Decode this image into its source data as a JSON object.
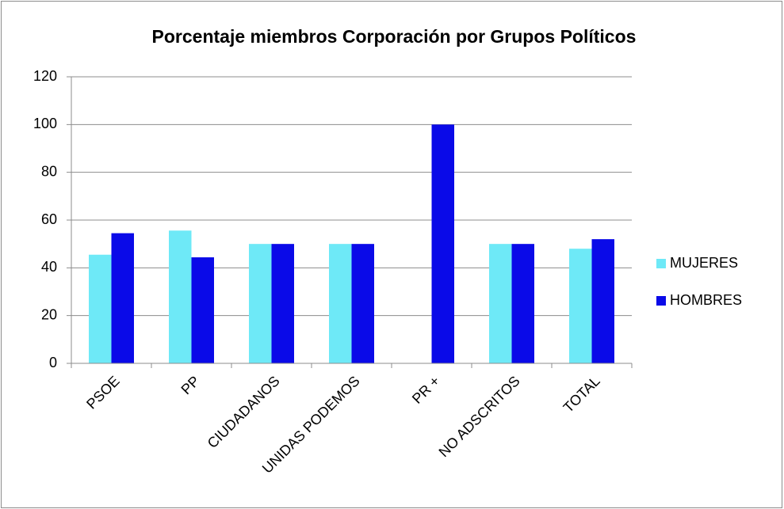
{
  "chart_data": {
    "type": "bar",
    "title": "Porcentaje miembros Corporación por Grupos Políticos",
    "categories": [
      "PSOE",
      "PP",
      "CIUDADANOS",
      "UNIDAS PODEMOS",
      "PR +",
      "NO ADSCRITOS",
      "TOTAL"
    ],
    "series": [
      {
        "name": "MUJERES",
        "color": "#6ee9f7",
        "values": [
          45.5,
          55.6,
          50,
          50,
          0,
          50,
          48
        ]
      },
      {
        "name": "HOMBRES",
        "color": "#0a0ae8",
        "values": [
          54.5,
          44.4,
          50,
          50,
          100,
          50,
          52
        ]
      }
    ],
    "ylim": [
      0,
      120
    ],
    "yticks": [
      0,
      20,
      40,
      60,
      80,
      100,
      120
    ],
    "grid": true,
    "legend": "right"
  }
}
